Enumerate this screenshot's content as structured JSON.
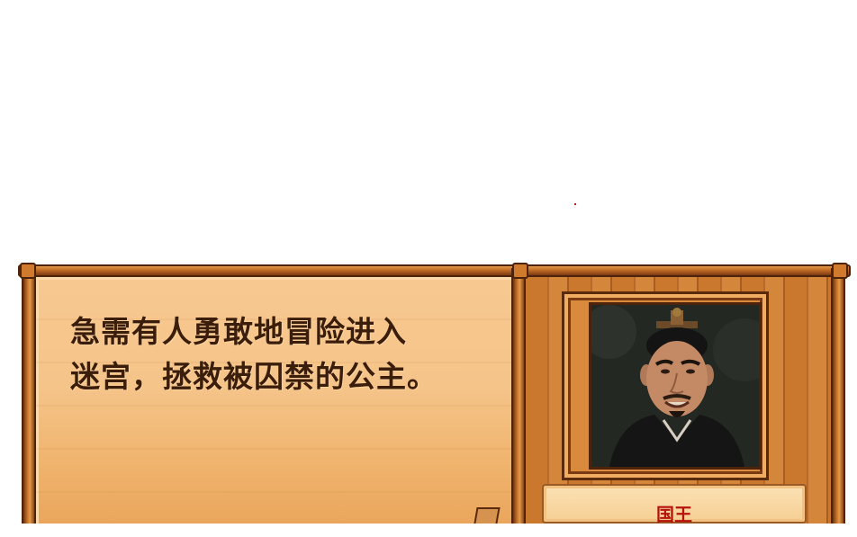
{
  "dialogue": {
    "lines": [
      "急需有人勇敢地冒险进入",
      "迷宫，拯救被囚禁的公主。"
    ]
  },
  "speaker": {
    "name": "国王",
    "portrait_icon": "king-portrait"
  },
  "colors": {
    "parchment": "#f5c489",
    "wood": "#c9782d",
    "text": "#3b1d0c",
    "name": "#b5120d"
  }
}
